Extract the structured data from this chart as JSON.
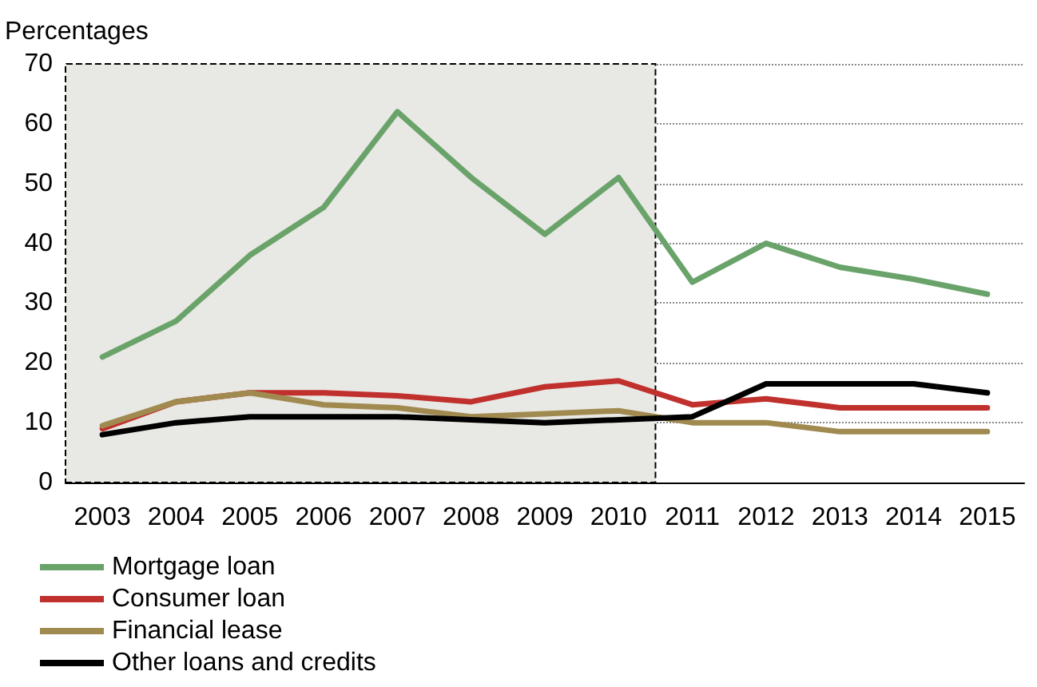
{
  "chart_data": {
    "type": "line",
    "ylabel": "Percentages",
    "x": [
      2003,
      2004,
      2005,
      2006,
      2007,
      2008,
      2009,
      2010,
      2011,
      2012,
      2013,
      2014,
      2015
    ],
    "series": [
      {
        "name": "Mortgage loan",
        "color": "#6aa36a",
        "values": [
          21,
          27,
          38,
          46,
          62,
          51,
          41.5,
          51,
          33.5,
          40,
          36,
          34,
          31.5
        ]
      },
      {
        "name": "Consumer loan",
        "color": "#c0302d",
        "values": [
          9,
          13.5,
          15,
          15,
          14.5,
          13.5,
          16,
          17,
          13,
          14,
          12.5,
          12.5,
          12.5
        ]
      },
      {
        "name": "Financial lease",
        "color": "#a08a50",
        "values": [
          9.5,
          13.5,
          15,
          13,
          12.5,
          11,
          11.5,
          12,
          10,
          10,
          8.5,
          8.5,
          8.5
        ]
      },
      {
        "name": "Other loans and credits",
        "color": "#000000",
        "values": [
          8,
          10,
          11,
          11,
          11,
          10.5,
          10,
          10.5,
          11,
          16.5,
          16.5,
          16.5,
          15
        ]
      }
    ],
    "xlim": [
      2002.5,
      2015.5
    ],
    "xticks": [
      2003,
      2004,
      2005,
      2006,
      2007,
      2008,
      2009,
      2010,
      2011,
      2012,
      2013,
      2014,
      2015
    ],
    "ylim": [
      0,
      70
    ],
    "yticks": [
      0,
      10,
      20,
      30,
      40,
      50,
      60,
      70
    ],
    "bands": [
      {
        "axis": "x",
        "from": 2002.5,
        "to": 2010.5,
        "color": "#e8e8e4"
      }
    ],
    "grid": "y",
    "legend": "bottom left",
    "marker": "none",
    "line_style": "solid"
  }
}
